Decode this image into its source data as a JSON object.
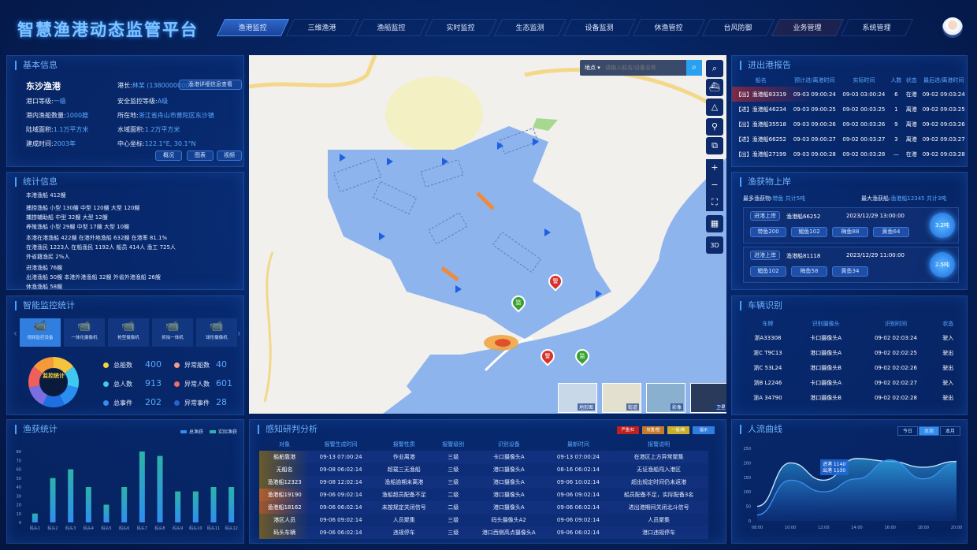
{
  "header": {
    "title": "智慧渔港动态监管平台",
    "nav": [
      "渔港监控",
      "三维渔港",
      "渔船监控",
      "实时监控",
      "生态监测",
      "设备监测",
      "休渔管控",
      "台风防御",
      "业务管理",
      "系统管理"
    ],
    "active": 0
  },
  "basic": {
    "title": "基本信息",
    "name": "东沙渔港",
    "rows": [
      [
        "港长:",
        "林某 (1380000000)"
      ],
      [
        "港口等级:",
        "一级"
      ],
      [
        "安全监控等级:",
        "A级"
      ],
      [
        "港内渔船数量:",
        "1000艘"
      ],
      [
        "所在地:",
        "浙江省舟山市普陀区东沙镇"
      ],
      [
        "陆域面积:",
        "1.1万平方米"
      ],
      [
        "水域面积:",
        "1.2万平方米"
      ],
      [
        "建成时间:",
        "2003年"
      ],
      [
        "中心坐标:",
        "122.1°E, 30.1°N"
      ]
    ],
    "link": "渔港详细信息查看",
    "buttons": [
      "概况",
      "图表",
      "视频"
    ]
  },
  "stats": {
    "title": "统计信息",
    "lines": [
      "本港渔船 412艘",
      "捕捞渔船  小型 130艘  中型 120艘  大型 120艘",
      "捕捞辅助船  中型 32艘  大型 12艘",
      "养殖渔船  小型 29艘  中型 17艘  大型 10艘",
      "本港在港渔船 422艘      在港外地渔船 632艘   在港率 81.1%",
      "在港渔民 1223人  在船渔民 1192人  船员 414人  渔工 725人",
      "外省籍渔民 2%人",
      "进港渔船 76艘",
      "出港渔船 50艘     本港外港渔船 32艘     外省外港渔船 26艘",
      "休渔渔船 58艘"
    ]
  },
  "monitor": {
    "title": "智能监控统计",
    "cameras": [
      "视频监控设备",
      "一体化摄像机",
      "枪型摄像机",
      "抓拍一体机",
      "球形摄像机"
    ],
    "donut_label": "监控统计",
    "items": [
      {
        "label": "总船数",
        "value": "400",
        "color": "#f5d33c"
      },
      {
        "label": "异常船数",
        "value": "40",
        "color": "#f29a8a"
      },
      {
        "label": "总人数",
        "value": "913",
        "color": "#3fc9f0"
      },
      {
        "label": "异常人数",
        "value": "601",
        "color": "#f06a6a"
      },
      {
        "label": "总事件",
        "value": "202",
        "color": "#3a8df0"
      },
      {
        "label": "异常事件",
        "value": "28",
        "color": "#2c5fd0"
      }
    ],
    "donut_colors": [
      "#f5c33c",
      "#3fc9f0",
      "#2a8df0",
      "#1f6fe0",
      "#7a6ee0",
      "#f0605a",
      "#f59a3a"
    ]
  },
  "chart_data": [
    {
      "type": "bar",
      "title": "渔获统计",
      "legend": [
        "总渔获",
        "实际渔获"
      ],
      "categories": [
        "码头1",
        "码头2",
        "码头3",
        "码头4",
        "码头5",
        "码头6",
        "码头7",
        "码头8",
        "码头9",
        "码头10",
        "码头11",
        "码头12"
      ],
      "values": [
        10,
        50,
        60,
        40,
        20,
        40,
        80,
        75,
        35,
        35,
        40,
        40
      ],
      "ylim": [
        0,
        80
      ],
      "yticks": [
        0,
        10,
        20,
        30,
        40,
        50,
        60,
        70,
        80
      ]
    },
    {
      "type": "area",
      "title": "人流曲线",
      "tabs": [
        "今日",
        "本周",
        "本月"
      ],
      "active_tab": 1,
      "x": [
        "08:00",
        "10:00",
        "12:00",
        "14:00",
        "16:00",
        "18:00",
        "20:00"
      ],
      "series": [
        {
          "name": "进港",
          "values": [
            50,
            200,
            140,
            215,
            205,
            185,
            205
          ]
        },
        {
          "name": "出港",
          "values": [
            20,
            140,
            100,
            145,
            210,
            145,
            200
          ]
        }
      ],
      "tooltip": [
        "进港 1140",
        "出港 1130"
      ],
      "ylim": [
        0,
        250
      ],
      "yticks": [
        0,
        50,
        100,
        150,
        200,
        250
      ]
    }
  ],
  "inout": {
    "title": "进出港报告",
    "headers": [
      "船名",
      "预计进/离港时间",
      "实际时间",
      "人数",
      "状态",
      "最后进/离港时间"
    ],
    "rows": [
      [
        "【出】渔港船83319",
        "09-03 09:00:24",
        "09-03 03:00:24",
        "6",
        "在港",
        "09-02 09:03:24"
      ],
      [
        "【进】渔港船46234",
        "09-03 09:00:25",
        "09-02 00:03:25",
        "1",
        "离港",
        "09-02 09:03:25"
      ],
      [
        "【出】渔港船35518",
        "09-03 09:00:26",
        "09-02 00:03:26",
        "9",
        "离港",
        "09-02 09:03:26"
      ],
      [
        "【进】渔港船66252",
        "09-03 09:00:27",
        "09-02 00:03:27",
        "3",
        "离港",
        "09-02 09:03:27"
      ],
      [
        "【出】渔港船27199",
        "09-03 09:00:28",
        "09-02 00:03:28",
        "—",
        "在港",
        "09-02 09:03:28"
      ]
    ]
  },
  "landing": {
    "title": "渔获物上岸",
    "summary": [
      [
        "最多渔获物:",
        "带鱼 共计5吨"
      ],
      [
        "最大渔获船:",
        "渔港船12345 共计3吨"
      ]
    ],
    "cards": [
      {
        "tag": "进港上岸",
        "ship": "渔港船66252",
        "time": "2023/12/29 13:00:00",
        "items": [
          "带鱼200",
          "鲳鱼102",
          "梅鱼88",
          "黄鱼64"
        ],
        "total": "3.2吨"
      },
      {
        "tag": "进港上岸",
        "ship": "渔港船81118",
        "time": "2023/12/29 11:00:00",
        "items": [
          "鲳鱼102",
          "梅鱼58",
          "黄鱼34"
        ],
        "total": "2.5吨"
      }
    ]
  },
  "vehicles": {
    "title": "车辆识别",
    "headers": [
      "车牌",
      "识别摄像头",
      "识别时间",
      "状态"
    ],
    "rows": [
      [
        "浙A33308",
        "卡口摄像头A",
        "09-02 02:03:24",
        "驶入"
      ],
      [
        "浙C T9C13",
        "港口摄像头A",
        "09-02 02:02:25",
        "驶出"
      ],
      [
        "浙C 53L24",
        "港口摄像头B",
        "09-02 02:02:26",
        "驶出"
      ],
      [
        "浙B L2246",
        "卡口摄像头A",
        "09-02 02:02:27",
        "驶入"
      ],
      [
        "浙A 34790",
        "港口摄像头B",
        "09-02 02:02:28",
        "驶出"
      ]
    ]
  },
  "alerts": {
    "title": "感知研判分析",
    "levels": [
      {
        "label": "严重/红",
        "color": "#c0201c"
      },
      {
        "label": "较重/橙",
        "color": "#c87a2c"
      },
      {
        "label": "一般/黄",
        "color": "#c8b02c"
      },
      {
        "label": "提示",
        "color": "#2f7ee0"
      }
    ],
    "headers": [
      "对象",
      "报警生成时间",
      "报警性质",
      "报警级别",
      "识别设备",
      "最新时间",
      "报警说明"
    ],
    "rows": [
      [
        "船舶靠港",
        "09-13 07:00:24",
        "作业离港",
        "三级",
        "卡口摄像头A",
        "09-13 07:00:24",
        "在港区上方异常聚集"
      ],
      [
        "无船名",
        "09-08 06:02:14",
        "超载三无渔船",
        "三级",
        "港口摄像头A",
        "08-16 06:02:14",
        "无证渔船闯入港区"
      ],
      [
        "渔港船12323",
        "09-08 12:02:14",
        "渔船逾期未离港",
        "三级",
        "港口摄像头A",
        "09-06 10:02:14",
        "超出规定时间仍未返港"
      ],
      [
        "渔港船19190",
        "09-06 09:02:14",
        "渔船超员配备不足",
        "二级",
        "港口摄像头A",
        "09-06 09:02:14",
        "船员配备不足，实际配备3名"
      ],
      [
        "渔港船18162",
        "09-06 06:02:14",
        "未按规定关闭信号",
        "二级",
        "港口摄像头A",
        "09-06 06:02:14",
        "进出港期间关闭北斗信号"
      ],
      [
        "港区人员",
        "09-06 09:02:14",
        "人员聚集",
        "三级",
        "码头摄像头A2",
        "09-06 09:02:14",
        "人员聚集"
      ],
      [
        "码头车辆",
        "09-06 06:02:14",
        "违规停车",
        "三级",
        "港口西侧高点摄像头A",
        "09-06 06:02:14",
        "港口违规停车"
      ]
    ],
    "row_colors": [
      "#6b5a2a",
      "#6b5a2a",
      "#6b5a2a",
      "#b4602a",
      "#a0582a",
      "#6b5a2a",
      "#6b5a2a"
    ]
  },
  "map": {
    "search_select": "地点",
    "search_placeholder": "请输入船名/设备名称",
    "tools": [
      "search-icon",
      "ship-icon",
      "fence-icon",
      "person-pin-icon",
      "layers-icon",
      "zoom-in-icon",
      "zoom-out-icon",
      "fullscreen-icon",
      "basemap-icon",
      "3d-icon"
    ],
    "label_3d": "3D",
    "basemaps": [
      "地形图",
      "街道",
      "影像",
      "卫星"
    ],
    "pin_labels": [
      "警",
      "监",
      "警",
      "监"
    ]
  }
}
